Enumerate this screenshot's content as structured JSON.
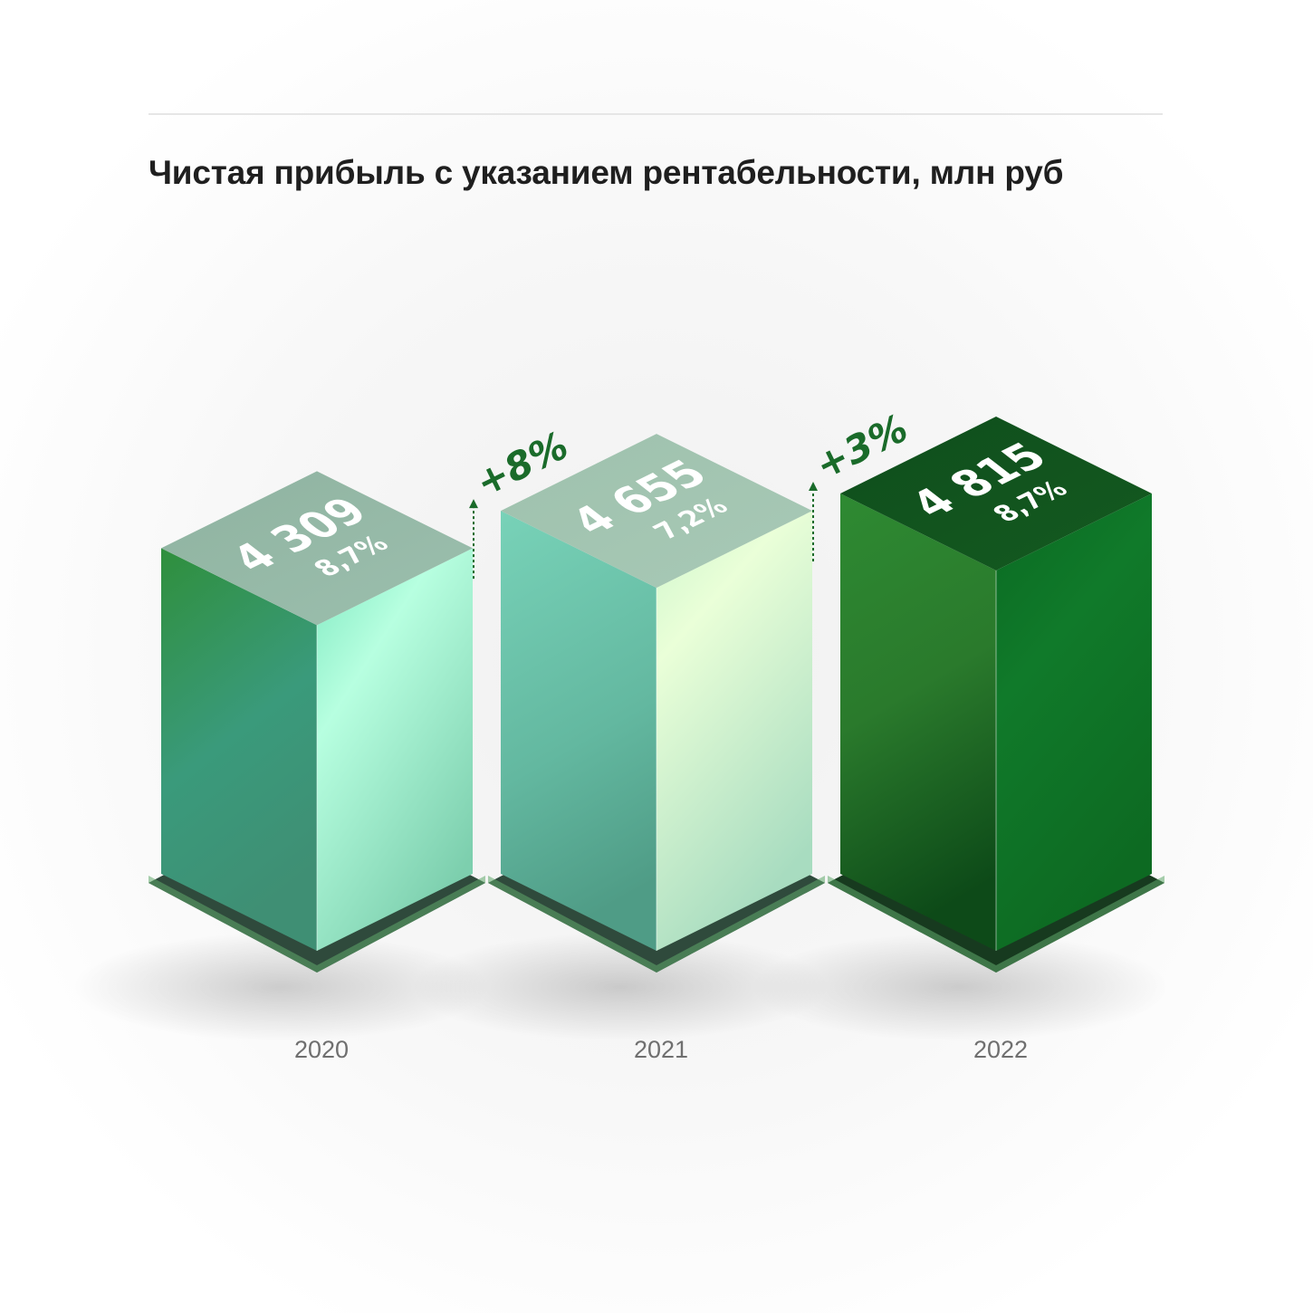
{
  "title": "Чистая прибыль с указанием рентабельности, млн руб",
  "chart_data": {
    "type": "bar",
    "categories": [
      "2020",
      "2021",
      "2022"
    ],
    "series": [
      {
        "values": [
          4309,
          4655,
          4815
        ]
      }
    ],
    "value_labels": [
      "4 309",
      "4 655",
      "4 815"
    ],
    "margin_labels": [
      "8,7%",
      "7,2%",
      "8,7%"
    ],
    "growth_labels": [
      "",
      "+8%",
      "+3%"
    ],
    "colors": {
      "accent": "#1a6b2a",
      "bar_2020": "#3f9d6e",
      "bar_2021": "#7fcfae",
      "bar_2022": "#137a25",
      "axis_text": "#6f6f6f"
    }
  }
}
